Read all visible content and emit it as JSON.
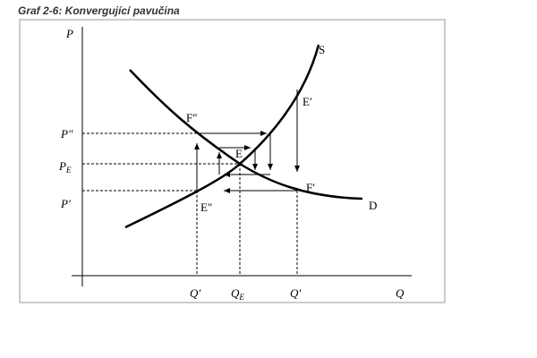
{
  "header": {
    "title": "Graf 2-6: Konvergující pavučina"
  },
  "axes": {
    "y": "P",
    "x": "Q"
  },
  "curves": {
    "supply": "S",
    "demand": "D"
  },
  "points": {
    "e_prime": "E′",
    "f_double": "F″",
    "e": "E",
    "f_prime": "F′",
    "e_double": "E″"
  },
  "y_labels": {
    "p_double": "P″",
    "p_e": {
      "main": "P",
      "sub": "E"
    },
    "p_prime": "P′"
  },
  "x_labels": {
    "q_left": "Q′",
    "q_e": {
      "main": "Q",
      "sub": "E"
    },
    "q_right": "Q′"
  }
}
